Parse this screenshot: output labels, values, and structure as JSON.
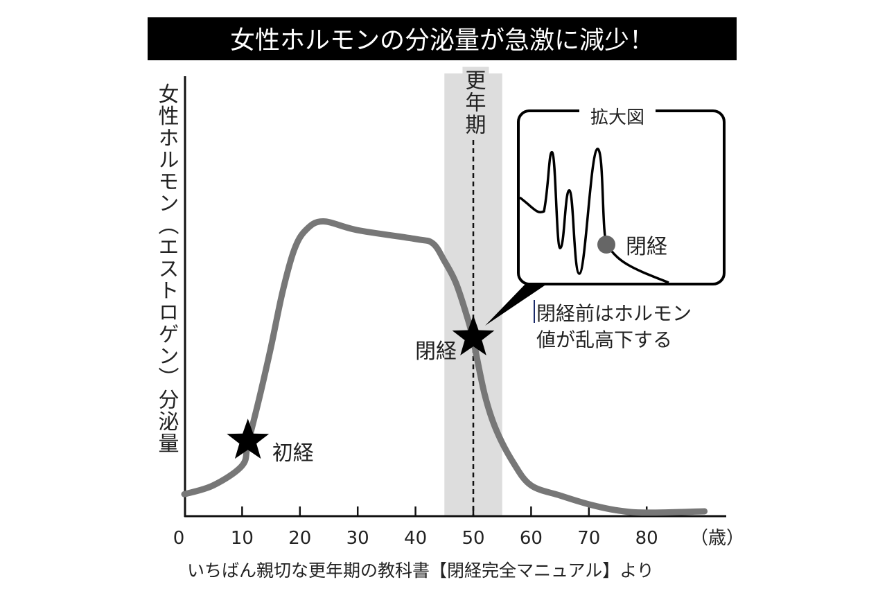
{
  "chart_data": {
    "type": "line",
    "title": "女性ホルモンの分泌量が急激に減少！",
    "ylabel": "女性ホルモン（エストロゲン）分泌量",
    "xunit": "（歳）",
    "xlim": [
      0,
      93
    ],
    "ylim": [
      0,
      100
    ],
    "xticks": [
      0,
      10,
      20,
      30,
      40,
      50,
      60,
      70,
      80
    ],
    "x_tick_labels": [
      "0",
      "10",
      "20",
      "30",
      "40",
      "50",
      "60",
      "70",
      "80"
    ],
    "grid": false,
    "series": [
      {
        "color": "#777777",
        "x": [
          0,
          5,
          10,
          11,
          13,
          15,
          17,
          19,
          21,
          24,
          30,
          40,
          43,
          45,
          47,
          49,
          50,
          52,
          54,
          57,
          60,
          65,
          70,
          75,
          80,
          90
        ],
        "y": [
          5,
          7,
          11.5,
          16.5,
          27,
          38.5,
          51,
          60.5,
          65,
          67,
          65,
          63,
          62,
          58,
          53,
          45,
          40,
          27.5,
          19.5,
          12,
          7,
          4.7,
          2.7,
          1.3,
          0.8,
          1.1
        ]
      }
    ],
    "shaded_band": {
      "label": "更年期",
      "x_range": [
        45,
        55
      ],
      "color": "#dddddd",
      "center_line": 50
    },
    "markers": [
      {
        "label": "初経",
        "x": 11,
        "y": 16.5,
        "shape": "star"
      },
      {
        "label": "閉経",
        "x": 50,
        "y": 40,
        "shape": "star"
      }
    ],
    "inset": {
      "title": "拡大図",
      "marker_label": "閉経",
      "marker_color": "#666666",
      "annotation_lines": [
        "閉経前はホルモン",
        "値が乱高下する"
      ]
    },
    "source": "いちばん親切な更年期の教科書【閉経完全マニュアル】より"
  }
}
